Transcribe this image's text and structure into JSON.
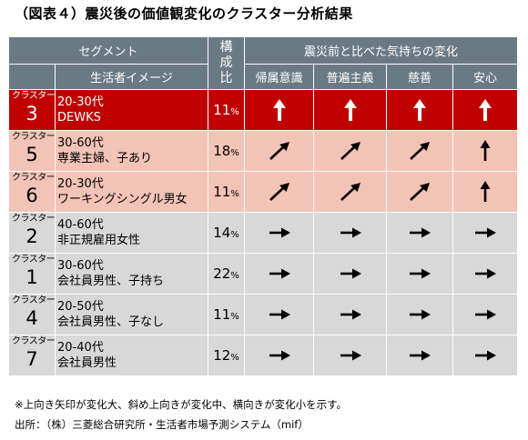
{
  "title": "（図表４）震災後の価値観変化のクラスター分析結果",
  "header": {
    "segment": "セグメント",
    "lifestyle_image": "生活者イメージ",
    "ratio_chars": [
      "構",
      "成",
      "比"
    ],
    "change_group": "震災前と比べた気持ちの変化",
    "columns": [
      "帰属意識",
      "普遍主義",
      "慈善",
      "安心"
    ]
  },
  "cluster_label": "クラスター",
  "pct_unit": "%",
  "rows": [
    {
      "cluster": "3",
      "line1": "20-30代",
      "line2": "DEWKS",
      "ratio": "11",
      "style": "red",
      "arrows": [
        "up",
        "up",
        "up",
        "up"
      ]
    },
    {
      "cluster": "5",
      "line1": "30-60代",
      "line2": "専業主婦、子あり",
      "ratio": "18",
      "style": "pink",
      "arrows": [
        "diag",
        "diag",
        "diag",
        "up"
      ]
    },
    {
      "cluster": "6",
      "line1": "20-30代",
      "line2": "ワーキングシングル男女",
      "ratio": "11",
      "style": "pink",
      "arrows": [
        "diag",
        "diag",
        "diag",
        "up"
      ]
    },
    {
      "cluster": "2",
      "line1": "40-60代",
      "line2": "非正規雇用女性",
      "ratio": "14",
      "style": "gray",
      "arrows": [
        "right",
        "right",
        "right",
        "right"
      ]
    },
    {
      "cluster": "1",
      "line1": "30-60代",
      "line2": "会社員男性、子持ち",
      "ratio": "22",
      "style": "gray",
      "arrows": [
        "right",
        "right",
        "right",
        "right"
      ]
    },
    {
      "cluster": "4",
      "line1": "20-50代",
      "line2": "会社員男性、子なし",
      "ratio": "11",
      "style": "gray",
      "arrows": [
        "right",
        "right",
        "right",
        "right"
      ]
    },
    {
      "cluster": "7",
      "line1": "20-40代",
      "line2": "会社員男性",
      "ratio": "12",
      "style": "gray",
      "arrows": [
        "right",
        "right",
        "right",
        "right"
      ]
    }
  ],
  "notes": [
    "※上向き矢印が変化大、斜め上向きが変化中、横向きが変化小を示す。",
    "出所：（株）三菱総合研究所・生活者市場予測システム（mif）"
  ],
  "colors": {
    "header": "#6a7a85",
    "red": "#c00000",
    "pink": "#f3c3b6",
    "gray": "#d8d8d8"
  }
}
